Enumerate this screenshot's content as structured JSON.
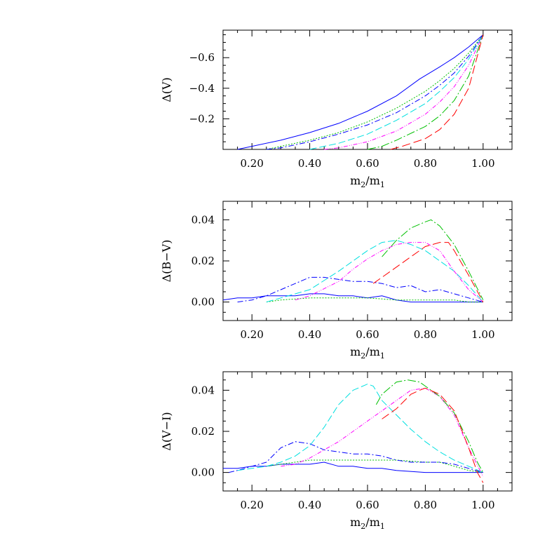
{
  "chart_data": [
    {
      "type": "line",
      "xlabel": "m",
      "xlabel_sub": [
        "2",
        "1"
      ],
      "ylabel": "Δ(V)",
      "xlim": [
        0.1,
        1.1
      ],
      "ylim": [
        0.0,
        -0.78
      ],
      "y_inverted": true,
      "xticks": [
        0.2,
        0.4,
        0.6,
        0.8,
        1.0
      ],
      "xtick_labels": [
        "0.20",
        "0.40",
        "0.60",
        "0.80",
        "1.00"
      ],
      "yticks": [
        -0.2,
        -0.4,
        -0.6
      ],
      "ytick_labels": [
        "−0.2",
        "−0.4",
        "−0.6"
      ],
      "series": [
        {
          "color": "#0000ff",
          "dash": "",
          "x": [
            0.15,
            0.2,
            0.3,
            0.4,
            0.5,
            0.6,
            0.7,
            0.78,
            0.85,
            0.9,
            0.95,
            1.0
          ],
          "y": [
            0.0,
            -0.02,
            -0.06,
            -0.11,
            -0.17,
            -0.25,
            -0.35,
            -0.46,
            -0.54,
            -0.6,
            -0.67,
            -0.75
          ]
        },
        {
          "color": "#00c000",
          "dash": "2,2",
          "x": [
            0.25,
            0.3,
            0.4,
            0.5,
            0.6,
            0.7,
            0.8,
            0.85,
            0.9,
            0.95,
            1.0
          ],
          "y": [
            0.0,
            -0.02,
            -0.06,
            -0.11,
            -0.18,
            -0.27,
            -0.38,
            -0.45,
            -0.53,
            -0.63,
            -0.75
          ]
        },
        {
          "color": "#0000ff",
          "dash": "8,3,2,3",
          "x": [
            0.25,
            0.3,
            0.4,
            0.5,
            0.6,
            0.7,
            0.8,
            0.85,
            0.9,
            0.95,
            1.0
          ],
          "y": [
            0.0,
            -0.01,
            -0.05,
            -0.1,
            -0.16,
            -0.24,
            -0.35,
            -0.42,
            -0.5,
            -0.61,
            -0.75
          ]
        },
        {
          "color": "#00e0e0",
          "dash": "10,4",
          "x": [
            0.4,
            0.45,
            0.5,
            0.6,
            0.7,
            0.8,
            0.85,
            0.9,
            0.95,
            1.0
          ],
          "y": [
            0.0,
            -0.02,
            -0.04,
            -0.1,
            -0.19,
            -0.3,
            -0.38,
            -0.47,
            -0.59,
            -0.75
          ]
        },
        {
          "color": "#ff00ff",
          "dash": "6,2,1,2,1,2",
          "x": [
            0.45,
            0.5,
            0.6,
            0.7,
            0.8,
            0.85,
            0.9,
            0.95,
            1.0
          ],
          "y": [
            0.0,
            -0.01,
            -0.05,
            -0.12,
            -0.23,
            -0.31,
            -0.41,
            -0.55,
            -0.75
          ]
        },
        {
          "color": "#00c000",
          "dash": "12,3,2,3",
          "x": [
            0.6,
            0.65,
            0.7,
            0.8,
            0.85,
            0.9,
            0.95,
            1.0
          ],
          "y": [
            0.0,
            -0.02,
            -0.06,
            -0.15,
            -0.22,
            -0.32,
            -0.48,
            -0.75
          ]
        },
        {
          "color": "#ff0000",
          "dash": "12,5",
          "x": [
            0.68,
            0.72,
            0.8,
            0.85,
            0.9,
            0.95,
            1.0
          ],
          "y": [
            0.0,
            -0.02,
            -0.07,
            -0.13,
            -0.23,
            -0.4,
            -0.75
          ]
        }
      ]
    },
    {
      "type": "line",
      "xlabel": "m",
      "xlabel_sub": [
        "2",
        "1"
      ],
      "ylabel": "Δ(B−V)",
      "xlim": [
        0.1,
        1.1
      ],
      "ylim": [
        -0.009,
        0.049
      ],
      "xticks": [
        0.2,
        0.4,
        0.6,
        0.8,
        1.0
      ],
      "xtick_labels": [
        "0.20",
        "0.40",
        "0.60",
        "0.80",
        "1.00"
      ],
      "yticks": [
        0.0,
        0.02,
        0.04
      ],
      "ytick_labels": [
        "0.00",
        "0.02",
        "0.04"
      ],
      "series": [
        {
          "color": "#0000ff",
          "dash": "",
          "x": [
            0.1,
            0.15,
            0.2,
            0.25,
            0.3,
            0.35,
            0.4,
            0.45,
            0.5,
            0.55,
            0.6,
            0.65,
            0.7,
            0.75,
            0.8,
            0.85,
            0.9,
            0.95,
            1.0
          ],
          "y": [
            0.001,
            0.002,
            0.002,
            0.003,
            0.003,
            0.003,
            0.004,
            0.004,
            0.003,
            0.003,
            0.002,
            0.003,
            0.001,
            0.0,
            0.0,
            0.0,
            0.0,
            0.0,
            0.0
          ]
        },
        {
          "color": "#00c000",
          "dash": "2,2",
          "x": [
            0.25,
            0.3,
            0.4,
            0.5,
            0.6,
            0.7,
            0.8,
            0.9,
            0.95,
            1.0
          ],
          "y": [
            0.0,
            0.001,
            0.002,
            0.002,
            0.002,
            0.001,
            0.001,
            0.001,
            0.0,
            0.0
          ]
        },
        {
          "color": "#0000ff",
          "dash": "8,3,2,3",
          "x": [
            0.15,
            0.2,
            0.25,
            0.3,
            0.35,
            0.4,
            0.45,
            0.5,
            0.55,
            0.6,
            0.65,
            0.7,
            0.75,
            0.8,
            0.85,
            0.9,
            0.95,
            1.0
          ],
          "y": [
            0.0,
            0.001,
            0.003,
            0.006,
            0.009,
            0.012,
            0.012,
            0.011,
            0.01,
            0.01,
            0.009,
            0.007,
            0.008,
            0.005,
            0.006,
            0.004,
            0.002,
            0.0
          ]
        },
        {
          "color": "#00e0e0",
          "dash": "10,4",
          "x": [
            0.25,
            0.3,
            0.4,
            0.5,
            0.55,
            0.6,
            0.65,
            0.7,
            0.75,
            0.8,
            0.85,
            0.9,
            0.95,
            1.0
          ],
          "y": [
            0.0,
            0.002,
            0.006,
            0.015,
            0.02,
            0.025,
            0.029,
            0.03,
            0.028,
            0.025,
            0.02,
            0.015,
            0.008,
            0.0
          ]
        },
        {
          "color": "#ff00ff",
          "dash": "6,2,1,2,1,2",
          "x": [
            0.35,
            0.4,
            0.5,
            0.55,
            0.6,
            0.65,
            0.7,
            0.75,
            0.8,
            0.85,
            0.9,
            0.95,
            1.0
          ],
          "y": [
            0.001,
            0.003,
            0.01,
            0.016,
            0.021,
            0.025,
            0.028,
            0.029,
            0.029,
            0.025,
            0.015,
            0.006,
            0.0
          ]
        },
        {
          "color": "#00c000",
          "dash": "12,3,2,3",
          "x": [
            0.65,
            0.7,
            0.75,
            0.8,
            0.82,
            0.85,
            0.9,
            0.95,
            1.0
          ],
          "y": [
            0.022,
            0.03,
            0.036,
            0.039,
            0.04,
            0.037,
            0.028,
            0.015,
            0.001
          ]
        },
        {
          "color": "#ff0000",
          "dash": "12,5",
          "x": [
            0.62,
            0.65,
            0.7,
            0.75,
            0.8,
            0.85,
            0.88,
            0.9,
            0.95,
            1.0
          ],
          "y": [
            0.009,
            0.012,
            0.017,
            0.022,
            0.027,
            0.029,
            0.029,
            0.025,
            0.013,
            0.0
          ]
        }
      ]
    },
    {
      "type": "line",
      "xlabel": "m",
      "xlabel_sub": [
        "2",
        "1"
      ],
      "ylabel": "Δ(V−I)",
      "xlim": [
        0.1,
        1.1
      ],
      "ylim": [
        -0.009,
        0.049
      ],
      "xticks": [
        0.2,
        0.4,
        0.6,
        0.8,
        1.0
      ],
      "xtick_labels": [
        "0.20",
        "0.40",
        "0.60",
        "0.80",
        "1.00"
      ],
      "yticks": [
        0.0,
        0.02,
        0.04
      ],
      "ytick_labels": [
        "0.00",
        "0.02",
        "0.04"
      ],
      "series": [
        {
          "color": "#0000ff",
          "dash": "",
          "x": [
            0.1,
            0.15,
            0.2,
            0.25,
            0.3,
            0.35,
            0.4,
            0.45,
            0.5,
            0.55,
            0.6,
            0.65,
            0.7,
            0.8,
            0.9,
            1.0
          ],
          "y": [
            0.002,
            0.002,
            0.003,
            0.003,
            0.004,
            0.004,
            0.004,
            0.005,
            0.003,
            0.003,
            0.002,
            0.002,
            0.001,
            0.0,
            0.0,
            0.0
          ]
        },
        {
          "color": "#00c000",
          "dash": "2,2",
          "x": [
            0.25,
            0.3,
            0.4,
            0.5,
            0.6,
            0.7,
            0.8,
            0.85,
            0.9,
            0.95,
            1.0
          ],
          "y": [
            0.003,
            0.004,
            0.006,
            0.006,
            0.006,
            0.006,
            0.005,
            0.005,
            0.003,
            0.001,
            0.0
          ]
        },
        {
          "color": "#0000ff",
          "dash": "8,3,2,3",
          "x": [
            0.12,
            0.15,
            0.2,
            0.25,
            0.3,
            0.35,
            0.4,
            0.45,
            0.5,
            0.55,
            0.6,
            0.65,
            0.7,
            0.75,
            0.8,
            0.85,
            0.9,
            0.95,
            1.0
          ],
          "y": [
            0.0,
            0.001,
            0.003,
            0.005,
            0.012,
            0.015,
            0.014,
            0.011,
            0.01,
            0.009,
            0.009,
            0.008,
            0.006,
            0.005,
            0.005,
            0.005,
            0.004,
            0.002,
            0.0
          ]
        },
        {
          "color": "#00e0e0",
          "dash": "10,4",
          "x": [
            0.15,
            0.2,
            0.25,
            0.3,
            0.35,
            0.4,
            0.45,
            0.5,
            0.55,
            0.6,
            0.62,
            0.65,
            0.7,
            0.75,
            0.8,
            0.85,
            0.9,
            0.95,
            1.0
          ],
          "y": [
            0.001,
            0.002,
            0.003,
            0.005,
            0.008,
            0.013,
            0.022,
            0.033,
            0.04,
            0.043,
            0.042,
            0.035,
            0.028,
            0.021,
            0.015,
            0.01,
            0.006,
            0.003,
            0.0
          ]
        },
        {
          "color": "#ff00ff",
          "dash": "6,2,1,2,1,2",
          "x": [
            0.3,
            0.35,
            0.4,
            0.5,
            0.55,
            0.6,
            0.65,
            0.7,
            0.75,
            0.8,
            0.85,
            0.9,
            0.95,
            1.0
          ],
          "y": [
            0.003,
            0.004,
            0.007,
            0.015,
            0.02,
            0.025,
            0.03,
            0.035,
            0.04,
            0.041,
            0.037,
            0.028,
            0.012,
            -0.002
          ]
        },
        {
          "color": "#00c000",
          "dash": "12,3,2,3",
          "x": [
            0.63,
            0.65,
            0.7,
            0.74,
            0.78,
            0.8,
            0.85,
            0.9,
            0.95,
            0.98,
            1.0
          ],
          "y": [
            0.033,
            0.038,
            0.044,
            0.045,
            0.044,
            0.042,
            0.037,
            0.029,
            0.015,
            0.005,
            0.0
          ]
        },
        {
          "color": "#ff0000",
          "dash": "12,5",
          "x": [
            0.65,
            0.7,
            0.75,
            0.78,
            0.8,
            0.85,
            0.9,
            0.95,
            0.98,
            1.0
          ],
          "y": [
            0.026,
            0.031,
            0.038,
            0.04,
            0.041,
            0.038,
            0.03,
            0.012,
            0.0,
            -0.005
          ]
        }
      ]
    }
  ]
}
